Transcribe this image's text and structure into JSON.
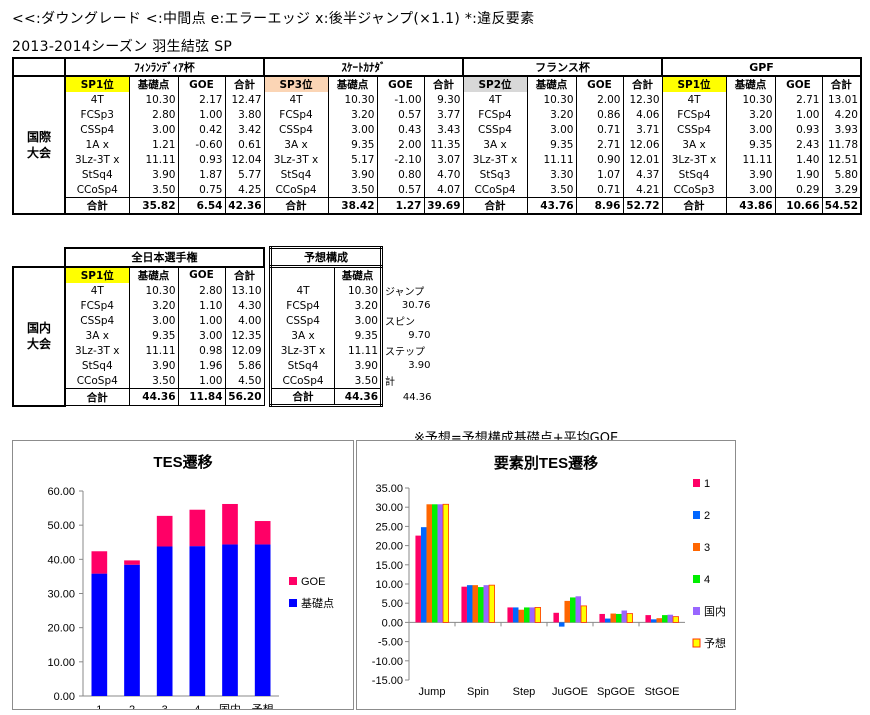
{
  "legend_line": "<<:ダウングレード  <:中間点  e:エラーエッジ  x:後半ジャンプ(×1.1)  *:違反要素",
  "season_line": "2013-2014シーズン  羽生結弦  SP",
  "table1": {
    "group_label": [
      "国際",
      "大会"
    ],
    "competitions": [
      "ﾌｨﾝﾗﾝﾃﾞｨｱ杯",
      "ｽｹｰﾄｶﾅﾀﾞ",
      "フランス杯",
      "GPF"
    ],
    "placements": [
      "SP1位",
      "SP3位",
      "SP2位",
      "SP1位"
    ],
    "placement_colors": [
      "#ffff00",
      "#fbd5b5",
      "#d8d8d8",
      "#ffff00"
    ],
    "col_base": "基礎点",
    "col_goe": "GOE",
    "col_total": "合計",
    "elements": [
      [
        "4T",
        "FCSp3",
        "CSSp4",
        "1A x",
        "3Lz-3T x",
        "StSq4",
        "CCoSp4",
        "合計"
      ],
      [
        "4T",
        "FCSp4",
        "CSSp4",
        "3A x",
        "3Lz-3T x",
        "StSq4",
        "CCoSp4",
        "合計"
      ],
      [
        "4T",
        "FCSp4",
        "CSSp4",
        "3A x",
        "3Lz-3T x",
        "StSq3",
        "CCoSp4",
        "合計"
      ],
      [
        "4T",
        "FCSp4",
        "CSSp4",
        "3A x",
        "3Lz-3T x",
        "StSq4",
        "CCoSp3",
        "合計"
      ]
    ],
    "base": [
      [
        "10.30",
        "2.80",
        "3.00",
        "1.21",
        "11.11",
        "3.90",
        "3.50",
        "35.82"
      ],
      [
        "10.30",
        "3.20",
        "3.00",
        "9.35",
        "5.17",
        "3.90",
        "3.50",
        "38.42"
      ],
      [
        "10.30",
        "3.20",
        "3.00",
        "9.35",
        "11.11",
        "3.30",
        "3.50",
        "43.76"
      ],
      [
        "10.30",
        "3.20",
        "3.00",
        "9.35",
        "11.11",
        "3.90",
        "3.00",
        "43.86"
      ]
    ],
    "goe": [
      [
        "2.17",
        "1.00",
        "0.42",
        "-0.60",
        "0.93",
        "1.87",
        "0.75",
        "6.54"
      ],
      [
        "-1.00",
        "0.57",
        "0.43",
        "2.00",
        "-2.10",
        "0.80",
        "0.57",
        "1.27"
      ],
      [
        "2.00",
        "0.86",
        "0.71",
        "2.71",
        "0.90",
        "1.07",
        "0.71",
        "8.96"
      ],
      [
        "2.71",
        "1.00",
        "0.93",
        "2.43",
        "1.40",
        "1.90",
        "0.29",
        "10.66"
      ]
    ],
    "total": [
      [
        "12.47",
        "3.80",
        "3.42",
        "0.61",
        "12.04",
        "5.77",
        "4.25",
        "42.36"
      ],
      [
        "9.30",
        "3.77",
        "3.43",
        "11.35",
        "3.07",
        "4.70",
        "4.07",
        "39.69"
      ],
      [
        "12.30",
        "4.06",
        "3.71",
        "12.06",
        "12.01",
        "4.37",
        "4.21",
        "52.72"
      ],
      [
        "13.01",
        "4.20",
        "3.93",
        "11.78",
        "12.51",
        "5.80",
        "3.29",
        "54.52"
      ]
    ]
  },
  "table2": {
    "group_label": [
      "国内",
      "大会"
    ],
    "competition": "全日本選手権",
    "placement": "SP1位",
    "placement_color": "#ffff00",
    "col_base": "基礎点",
    "col_goe": "GOE",
    "col_total": "合計",
    "elements": [
      "4T",
      "FCSp4",
      "CSSp4",
      "3A x",
      "3Lz-3T x",
      "StSq4",
      "CCoSp4",
      "合計"
    ],
    "base": [
      "10.30",
      "3.20",
      "3.00",
      "9.35",
      "11.11",
      "3.90",
      "3.50",
      "44.36"
    ],
    "goe": [
      "2.80",
      "1.10",
      "1.00",
      "3.00",
      "0.98",
      "1.96",
      "1.00",
      "11.84"
    ],
    "total": [
      "13.10",
      "4.30",
      "4.00",
      "12.35",
      "12.09",
      "5.86",
      "4.50",
      "56.20"
    ],
    "forecast_title": "予想構成",
    "forecast_col_base": "基礎点",
    "forecast_elements": [
      "4T",
      "FCSp4",
      "CSSp4",
      "3A x",
      "3Lz-3T x",
      "StSq4",
      "CCoSp4",
      "合計"
    ],
    "forecast_base": [
      "10.30",
      "3.20",
      "3.00",
      "9.35",
      "11.11",
      "3.90",
      "3.50",
      "44.36"
    ],
    "side_notes": [
      "ジャンプ",
      "30.76",
      "スピン",
      "9.70",
      "ステップ",
      "3.90",
      "計",
      "44.36"
    ]
  },
  "formula_note": "※予想=予想構成基礎点+平均GOE",
  "chart_data": [
    {
      "type": "bar",
      "title": "TES遷移",
      "categories": [
        "1",
        "2",
        "3",
        "4",
        "国内",
        "予想"
      ],
      "stacked": true,
      "series": [
        {
          "name": "基礎点",
          "color": "#0000ff",
          "values": [
            35.82,
            38.42,
            43.76,
            43.86,
            44.36,
            44.36
          ]
        },
        {
          "name": "GOE",
          "color": "#ff0066",
          "values": [
            6.54,
            1.27,
            8.96,
            10.66,
            11.84,
            6.85
          ]
        }
      ],
      "ylim": [
        0,
        60
      ],
      "yticks": [
        "0.00",
        "10.00",
        "20.00",
        "30.00",
        "40.00",
        "50.00",
        "60.00"
      ],
      "grid": false,
      "legend": "right"
    },
    {
      "type": "bar",
      "title": "要素別TES遷移",
      "categories": [
        "Jump",
        "Spin",
        "Step",
        "JuGOE",
        "SpGOE",
        "StGOE"
      ],
      "series": [
        {
          "name": "1",
          "color": "#ff0066",
          "values": [
            22.6,
            9.3,
            3.9,
            2.5,
            2.2,
            1.9
          ]
        },
        {
          "name": "2",
          "color": "#0066ff",
          "values": [
            24.8,
            9.7,
            3.9,
            -1.1,
            1.0,
            0.8
          ]
        },
        {
          "name": "3",
          "color": "#ff6600",
          "values": [
            30.76,
            9.7,
            3.3,
            5.6,
            2.3,
            1.1
          ]
        },
        {
          "name": "4",
          "color": "#00ee00",
          "values": [
            30.76,
            9.2,
            3.9,
            6.5,
            2.2,
            1.9
          ]
        },
        {
          "name": "国内",
          "color": "#9966ff",
          "values": [
            30.76,
            9.7,
            3.9,
            6.8,
            3.1,
            2.0
          ]
        },
        {
          "name": "予想",
          "color": "#ffff00",
          "values": [
            30.76,
            9.7,
            3.9,
            4.3,
            2.3,
            1.5
          ]
        }
      ],
      "ylim": [
        -15,
        35
      ],
      "yticks": [
        "-15.00",
        "-10.00",
        "-5.00",
        "0.00",
        "5.00",
        "10.00",
        "15.00",
        "20.00",
        "25.00",
        "30.00",
        "35.00"
      ],
      "grid": false,
      "legend": "right"
    }
  ]
}
